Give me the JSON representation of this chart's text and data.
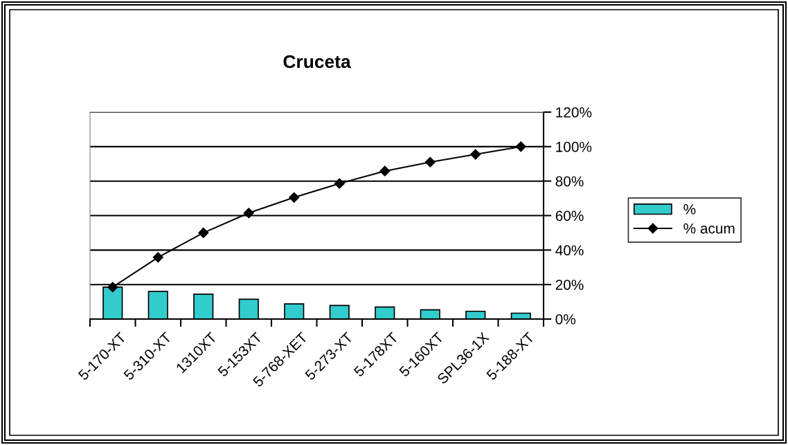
{
  "chart_data": {
    "type": "bar",
    "title": "Cruceta",
    "categories": [
      "5-170-XT",
      "5-310-XT",
      "1310XT",
      "5-153XT",
      "5-768-XET",
      "5-273-XT",
      "5-178XT",
      "5-160XT",
      "SPL36-1X",
      "5-188-XT"
    ],
    "series": [
      {
        "name": "%",
        "color": "#33cccc",
        "values": [
          18.5,
          16.0,
          14.4,
          11.5,
          8.8,
          7.9,
          7.0,
          5.4,
          4.5,
          3.4
        ]
      },
      {
        "name": "% acum",
        "type": "line",
        "color": "#000000",
        "marker": "diamond",
        "values": [
          18.5,
          35.8,
          50.0,
          61.5,
          70.5,
          78.6,
          85.8,
          91.0,
          95.5,
          100
        ]
      }
    ],
    "ylim": [
      0,
      120
    ],
    "yticks": [
      {
        "value": 0,
        "label": "0%"
      },
      {
        "value": 20,
        "label": "20%"
      },
      {
        "value": 40,
        "label": "40%"
      },
      {
        "value": 60,
        "label": "60%"
      },
      {
        "value": 80,
        "label": "80%"
      },
      {
        "value": 100,
        "label": "100%"
      },
      {
        "value": 120,
        "label": "120%"
      }
    ],
    "grid": "y",
    "legend": "right"
  }
}
